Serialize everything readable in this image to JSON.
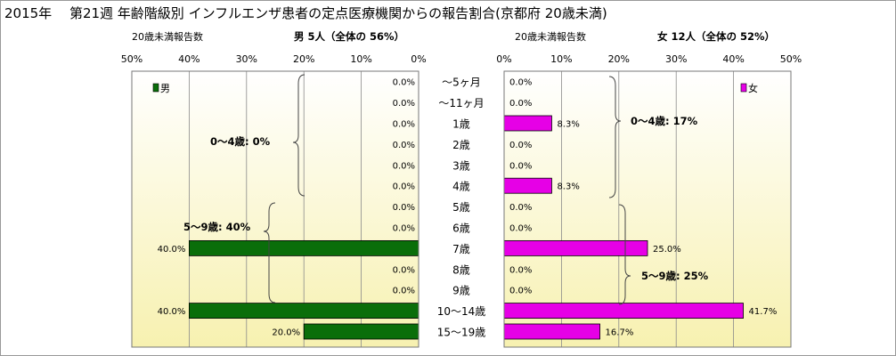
{
  "title": "2015年　 第21週 年齢階級別 インフルエンザ患者の定点医療機関からの報告割合(京都府 20歳未満)",
  "left_panel": {
    "header_left": "20歳未満報告数",
    "header_right": "男 5人（全体の 56%）",
    "legend": "男",
    "brace_0_4": "0～4歳: 0%",
    "brace_5_9": "5～9歳: 40%"
  },
  "right_panel": {
    "header_left": "20歳未満報告数",
    "header_right": "女 12人（全体の 52%）",
    "legend": "女",
    "brace_0_4": "0～4歳: 17%",
    "brace_5_9": "5～9歳: 25%"
  },
  "colors": {
    "male": "#0a6e0a",
    "female": "#e600e6",
    "plot_bg_top": "#ffffff",
    "plot_bg_bottom": "#f7f1b0",
    "frame": "#777777"
  },
  "chart_data": {
    "type": "bar",
    "orientation": "horizontal",
    "title": "2015年　 第21週 年齢階級別 インフルエンザ患者の定点医療機関からの報告割合(京都府 20歳未満)",
    "categories": [
      "～5ヶ月",
      "～11ヶ月",
      "1歳",
      "2歳",
      "3歳",
      "4歳",
      "5歳",
      "6歳",
      "7歳",
      "8歳",
      "9歳",
      "10～14歳",
      "15～19歳"
    ],
    "series": [
      {
        "name": "男",
        "values": [
          0.0,
          0.0,
          0.0,
          0.0,
          0.0,
          0.0,
          0.0,
          0.0,
          40.0,
          0.0,
          0.0,
          40.0,
          20.0
        ],
        "labels": [
          "0.0%",
          "0.0%",
          "0.0%",
          "0.0%",
          "0.0%",
          "0.0%",
          "0.0%",
          "0.0%",
          "40.0%",
          "0.0%",
          "0.0%",
          "40.0%",
          "20.0%"
        ]
      },
      {
        "name": "女",
        "values": [
          0.0,
          0.0,
          8.3,
          0.0,
          0.0,
          8.3,
          0.0,
          0.0,
          25.0,
          0.0,
          0.0,
          41.7,
          16.7
        ],
        "labels": [
          "0.0%",
          "0.0%",
          "8.3%",
          "0.0%",
          "0.0%",
          "8.3%",
          "0.0%",
          "0.0%",
          "25.0%",
          "0.0%",
          "0.0%",
          "41.7%",
          "16.7%"
        ]
      }
    ],
    "xlim": [
      0,
      50
    ],
    "male_ticks": [
      "50%",
      "40%",
      "30%",
      "20%",
      "10%",
      "0%"
    ],
    "female_ticks": [
      "0%",
      "10%",
      "20%",
      "30%",
      "40%",
      "50%"
    ],
    "grid": true
  }
}
